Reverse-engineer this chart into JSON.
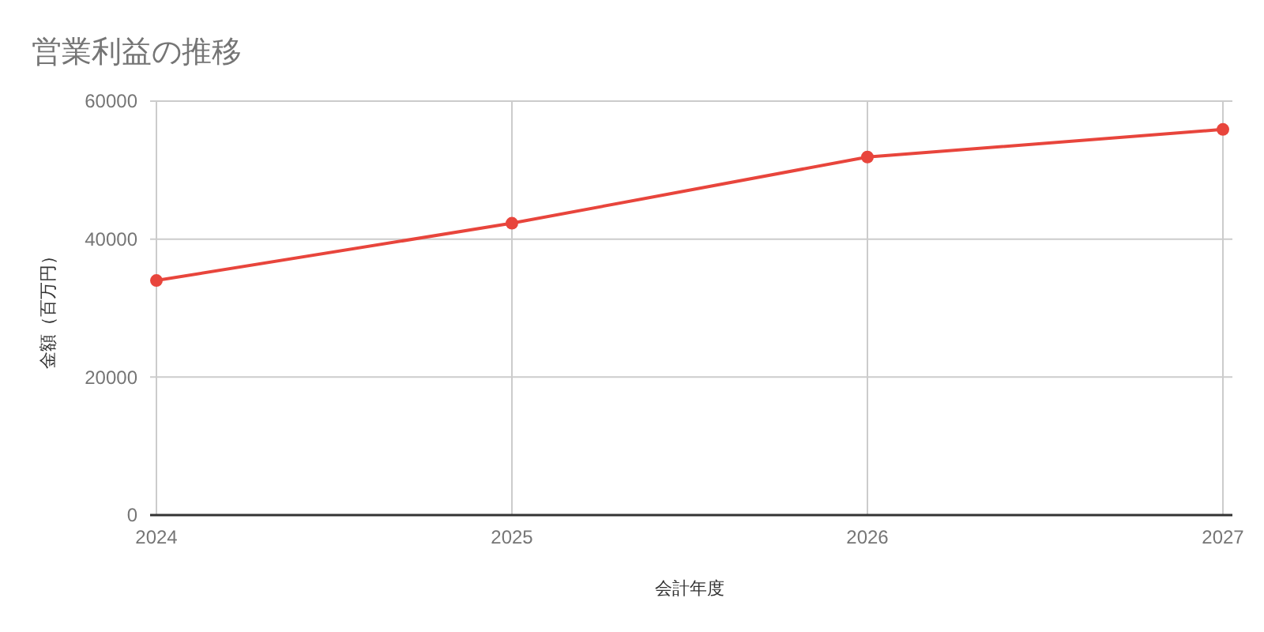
{
  "chart_data": {
    "type": "line",
    "title": "営業利益の推移",
    "xlabel": "会計年度",
    "ylabel": "金額（百万円）",
    "x": [
      2024,
      2025,
      2026,
      2027
    ],
    "series": [
      {
        "color": "#e8453c",
        "values": [
          34000,
          42300,
          51900,
          55900
        ]
      }
    ],
    "xlim": [
      2024,
      2027
    ],
    "xticks": [
      2024,
      2025,
      2026,
      2027
    ],
    "ylim": [
      0,
      60000
    ],
    "yticks": [
      0,
      20000,
      40000,
      60000
    ],
    "grid": true,
    "marker": "circle",
    "line_style": "solid"
  }
}
